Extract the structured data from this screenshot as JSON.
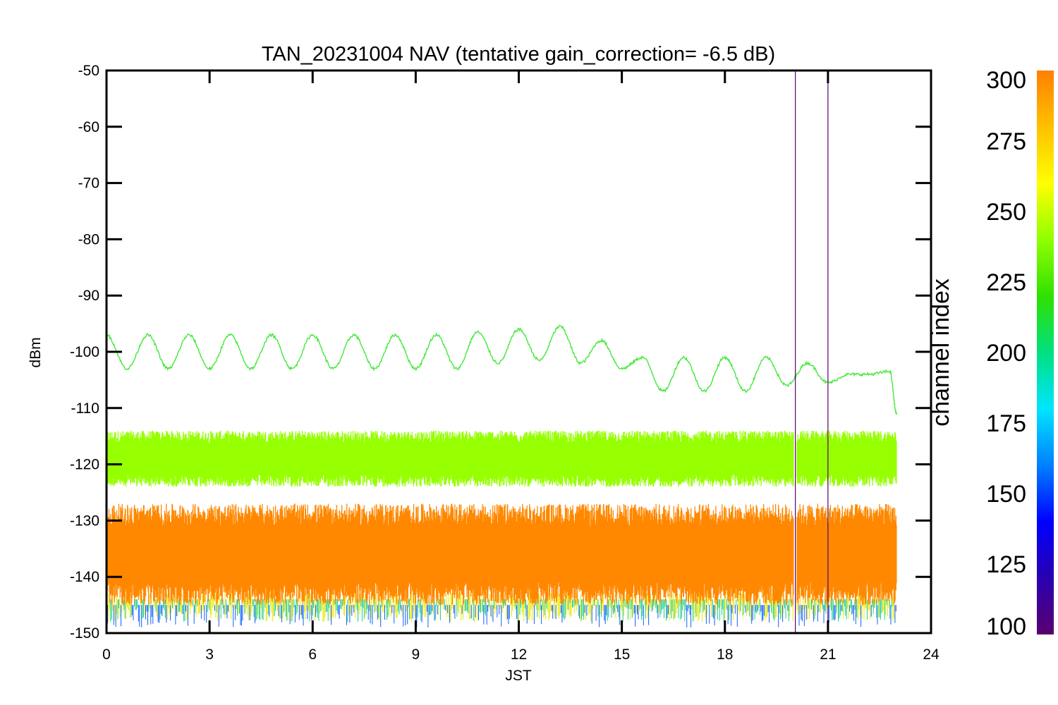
{
  "chart_data": {
    "type": "line",
    "title": "TAN_20231004 NAV (tentative gain_correction= -6.5 dB)",
    "xlabel": "JST",
    "ylabel": "dBm",
    "xlim": [
      0,
      24
    ],
    "ylim": [
      -150,
      -50
    ],
    "x_ticks": [
      0,
      3,
      6,
      9,
      12,
      15,
      18,
      21,
      24
    ],
    "y_ticks": [
      -50,
      -60,
      -70,
      -80,
      -90,
      -100,
      -110,
      -120,
      -130,
      -140,
      -150
    ],
    "grid": false,
    "colorbar": {
      "label": "channel index",
      "range": [
        100,
        300
      ],
      "ticks": [
        100,
        125,
        150,
        175,
        200,
        225,
        250,
        275,
        300
      ],
      "colormap": [
        "#5a0070",
        "#2a00b0",
        "#0000ff",
        "#0080ff",
        "#00e5ff",
        "#00e080",
        "#30e000",
        "#90ff00",
        "#ffff00",
        "#ffc000",
        "#ff8000"
      ]
    },
    "series": [
      {
        "color": "#44e83a",
        "description_values": "periodic signal ~ -100 dBm, period ~1.2 h",
        "x": [
          0,
          0.6,
          1.2,
          1.8,
          2.4,
          3.0,
          3.6,
          4.2,
          4.8,
          5.4,
          6.0,
          6.6,
          7.2,
          7.8,
          8.4,
          9.0,
          9.6,
          10.2,
          10.8,
          11.4,
          12.0,
          12.6,
          13.2,
          13.8,
          14.4,
          15.0,
          15.6,
          16.2,
          16.8,
          17.4,
          18.0,
          18.6,
          19.2,
          19.8,
          20.4,
          21.0,
          21.6,
          22.2,
          22.8,
          23.0
        ],
        "y": [
          -97,
          -103,
          -97,
          -103,
          -97,
          -103,
          -97,
          -103,
          -97,
          -103,
          -97,
          -103,
          -97,
          -103,
          -97,
          -103,
          -97,
          -103,
          -96.5,
          -102,
          -96,
          -101.5,
          -95.5,
          -102,
          -98,
          -103,
          -101,
          -107,
          -101,
          -107,
          -101,
          -107,
          -101,
          -106,
          -102,
          -105.5,
          -104,
          -104,
          -103.5,
          -111
        ]
      },
      {
        "color": "#96ff00",
        "description_values": "noise band ~ -120 dBm",
        "x": [
          0,
          23
        ],
        "y": [
          -119,
          -119
        ],
        "spread": [
          -124,
          -114
        ]
      },
      {
        "color": "#ff8800",
        "description_values": "dense noise band ~ -136 dBm",
        "x": [
          0,
          23
        ],
        "y": [
          -136,
          -136
        ],
        "spread": [
          -145,
          -127
        ]
      }
    ],
    "vertical_lines": [
      {
        "x": 20.05,
        "color": "#5a0070"
      },
      {
        "x": 21.0,
        "color": "#5a0070"
      }
    ],
    "gap_interval": [
      20.0,
      20.1
    ]
  }
}
